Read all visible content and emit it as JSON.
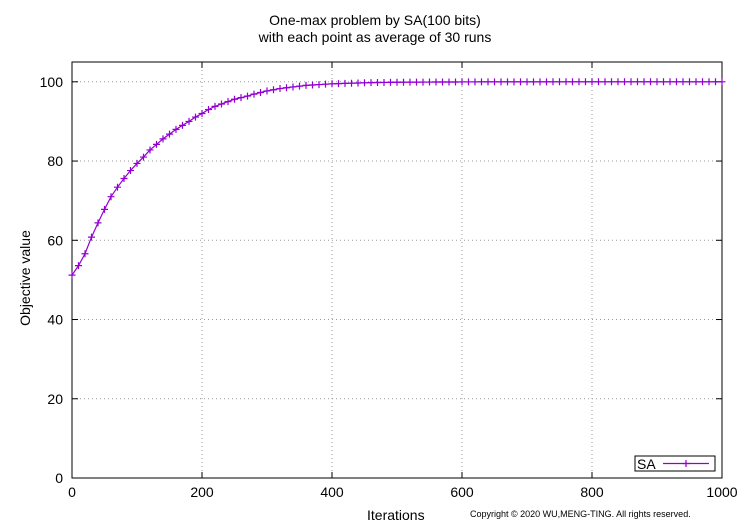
{
  "chart_data": {
    "type": "line",
    "title": "One-max problem by SA(100 bits)",
    "subtitle": "with each point as average of 30 runs",
    "xlabel": "Iterations",
    "ylabel": "Objective value",
    "xlim": [
      0,
      1000
    ],
    "ylim": [
      0,
      105
    ],
    "xticks": [
      0,
      200,
      400,
      600,
      800,
      1000
    ],
    "yticks": [
      0,
      20,
      40,
      60,
      80,
      100
    ],
    "grid": true,
    "legend_position": "bottom-right",
    "series": [
      {
        "name": "SA",
        "color": "#9400D3",
        "marker": "plus",
        "x": [
          0,
          10,
          20,
          30,
          40,
          50,
          60,
          70,
          80,
          90,
          100,
          110,
          120,
          130,
          140,
          150,
          160,
          170,
          180,
          190,
          200,
          210,
          220,
          230,
          240,
          250,
          260,
          270,
          280,
          290,
          300,
          310,
          320,
          330,
          340,
          350,
          360,
          370,
          380,
          390,
          400,
          410,
          420,
          430,
          440,
          450,
          460,
          470,
          480,
          490,
          500,
          510,
          520,
          530,
          540,
          550,
          560,
          570,
          580,
          590,
          600,
          610,
          620,
          630,
          640,
          650,
          660,
          670,
          680,
          690,
          700,
          710,
          720,
          730,
          740,
          750,
          760,
          770,
          780,
          790,
          800,
          810,
          820,
          830,
          840,
          850,
          860,
          870,
          880,
          890,
          900,
          910,
          920,
          930,
          940,
          950,
          960,
          970,
          980,
          990,
          1000
        ],
        "y": [
          51.2,
          53.6,
          56.6,
          60.8,
          64.4,
          67.8,
          71.0,
          73.4,
          75.6,
          77.6,
          79.4,
          81.0,
          82.8,
          84.2,
          85.6,
          86.8,
          88.0,
          89.0,
          90.0,
          91.1,
          92.0,
          93.0,
          93.8,
          94.4,
          95.0,
          95.6,
          96.0,
          96.4,
          96.9,
          97.3,
          97.7,
          98.0,
          98.3,
          98.5,
          98.7,
          98.9,
          99.1,
          99.2,
          99.3,
          99.4,
          99.5,
          99.55,
          99.6,
          99.65,
          99.7,
          99.75,
          99.8,
          99.82,
          99.84,
          99.86,
          99.88,
          99.9,
          99.91,
          99.92,
          99.93,
          99.94,
          99.95,
          99.95,
          99.96,
          99.96,
          99.97,
          99.97,
          99.97,
          99.98,
          99.98,
          99.98,
          99.98,
          99.99,
          99.99,
          99.99,
          99.99,
          99.99,
          99.99,
          99.99,
          100,
          100,
          100,
          100,
          100,
          100,
          100,
          100,
          100,
          100,
          100,
          100,
          100,
          100,
          100,
          100,
          100,
          100,
          100,
          100,
          100,
          100,
          100,
          100,
          100,
          100,
          100
        ]
      }
    ]
  },
  "footer": {
    "copyright": "Copyright © 2020 WU,MENG-TING. All rights reserved."
  }
}
